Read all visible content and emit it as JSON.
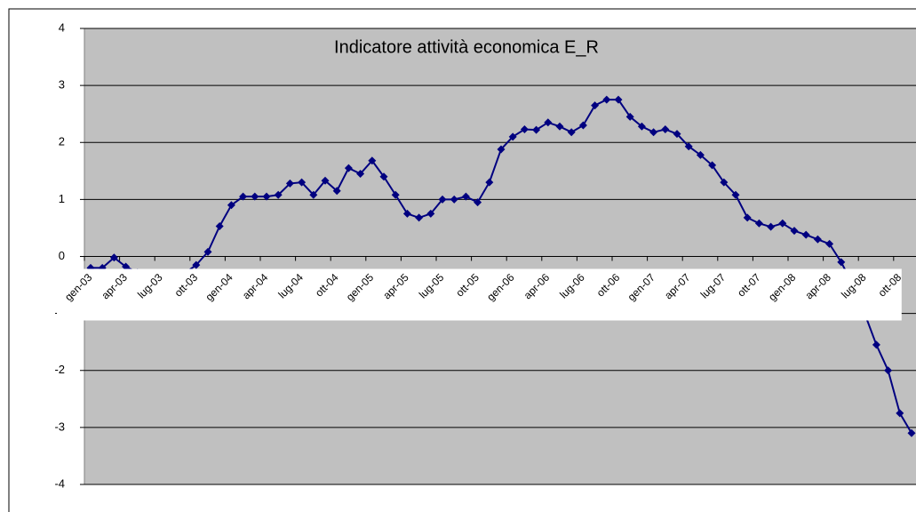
{
  "chart_data": {
    "type": "line",
    "title": "Indicatore attività economica E_R",
    "categories": [
      "gen-03",
      null,
      null,
      "apr-03",
      null,
      null,
      "lug-03",
      null,
      null,
      "ott-03",
      null,
      null,
      "gen-04",
      null,
      null,
      "apr-04",
      null,
      null,
      "lug-04",
      null,
      null,
      "ott-04",
      null,
      null,
      "gen-05",
      null,
      null,
      "apr-05",
      null,
      null,
      "lug-05",
      null,
      null,
      "ott-05",
      null,
      null,
      "gen-06",
      null,
      null,
      "apr-06",
      null,
      null,
      "lug-06",
      null,
      null,
      "ott-06",
      null,
      null,
      "gen-07",
      null,
      null,
      "apr-07",
      null,
      null,
      "lug-07",
      null,
      null,
      "ott-07",
      null,
      null,
      "gen-08",
      null,
      null,
      "apr-08",
      null,
      null,
      "lug-08",
      null,
      null,
      "ott-08",
      null
    ],
    "series": [
      {
        "name": "E_R",
        "color": "#000080",
        "values": [
          -0.2,
          -0.2,
          -0.02,
          -0.18,
          -0.28,
          -0.4,
          -0.5,
          -0.45,
          -0.3,
          -0.15,
          0.08,
          0.53,
          0.9,
          1.05,
          1.05,
          1.05,
          1.08,
          1.28,
          1.3,
          1.08,
          1.33,
          1.15,
          1.55,
          1.45,
          1.68,
          1.4,
          1.08,
          0.75,
          0.68,
          0.75,
          1.0,
          1.0,
          1.05,
          0.95,
          1.3,
          1.88,
          2.1,
          2.23,
          2.22,
          2.35,
          2.28,
          2.18,
          2.3,
          2.65,
          2.75,
          2.75,
          2.45,
          2.28,
          2.18,
          2.23,
          2.15,
          1.93,
          1.78,
          1.6,
          1.3,
          1.08,
          0.68,
          0.58,
          0.52,
          0.58,
          0.45,
          0.38,
          0.3,
          0.22,
          -0.1,
          -0.5,
          -1.0,
          -1.55,
          -2.0,
          -2.75,
          -3.1
        ]
      }
    ],
    "ylim": [
      -4,
      4
    ],
    "yticks": [
      -4,
      -3,
      -2,
      -1,
      0,
      1,
      2,
      3,
      4
    ],
    "grid": true
  }
}
